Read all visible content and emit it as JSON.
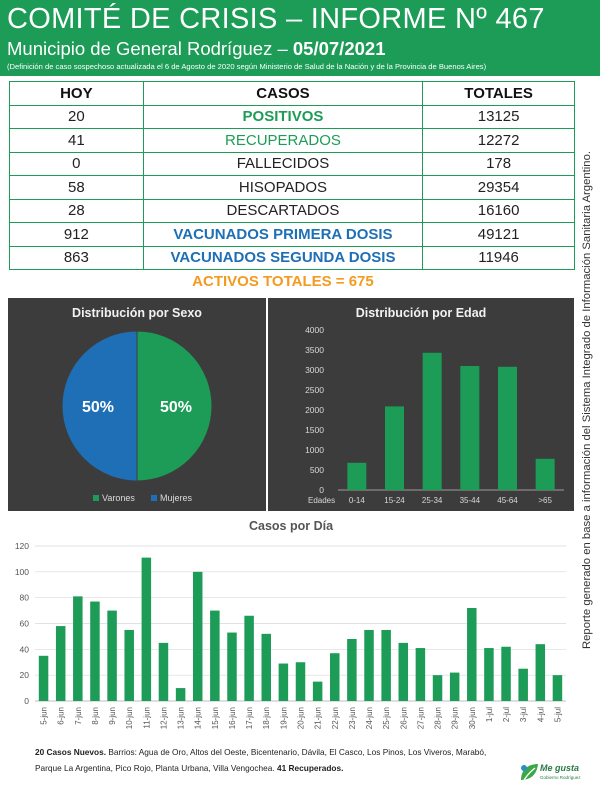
{
  "header": {
    "title": "COMITÉ DE CRISIS – INFORME Nº 467",
    "subtitle_prefix": "Municipio de General Rodríguez – ",
    "subtitle_date": "05/07/2021",
    "note": "(Definición de caso sospechoso actualizada el 6 de Agosto de 2020 según Ministerio de Salud de la Nación y de la Provincia de Buenos Aires)"
  },
  "table": {
    "headers": [
      "HOY",
      "CASOS",
      "TOTALES"
    ],
    "rows": [
      {
        "hoy": "20",
        "caso": "POSITIVOS",
        "total": "13125",
        "color": "#1d9c57"
      },
      {
        "hoy": "41",
        "caso": "RECUPERADOS",
        "total": "12272",
        "color": "#1d9c57"
      },
      {
        "hoy": "0",
        "caso": "FALLECIDOS",
        "total": "178",
        "color": "#222222"
      },
      {
        "hoy": "58",
        "caso": "HISOPADOS",
        "total": "29354",
        "color": "#222222"
      },
      {
        "hoy": "28",
        "caso": "DESCARTADOS",
        "total": "16160",
        "color": "#222222"
      },
      {
        "hoy": "912",
        "caso": "VACUNADOS PRIMERA DOSIS",
        "total": "49121",
        "color": "#1e6fb5"
      },
      {
        "hoy": "863",
        "caso": "VACUNADOS SEGUNDA DOSIS",
        "total": "11946",
        "color": "#1e6fb5"
      }
    ],
    "activos": "ACTIVOS TOTALES = 675"
  },
  "sidebar_text": "Reporte generado en base a información del Sistema Integrado de Información Sanitaria Argentino.",
  "colors": {
    "green": "#1d9c57",
    "blue": "#1e6fb5",
    "orange": "#f39a1f",
    "panel": "#3c3c3c"
  },
  "chart_data": [
    {
      "type": "pie",
      "title": "Distribución por Sexo",
      "labels": [
        "Varones",
        "Mujeres"
      ],
      "values": [
        50,
        50
      ],
      "value_labels": [
        "50%",
        "50%"
      ],
      "colors": [
        "#1d9c57",
        "#1e6fb5"
      ],
      "legend": "bottom"
    },
    {
      "type": "bar",
      "title": "Distribución por Edad",
      "x_axis_label": "Edades",
      "categories": [
        "0-14",
        "15-24",
        "25-34",
        "35-44",
        "45-64",
        ">65"
      ],
      "values": [
        680,
        2090,
        3430,
        3100,
        3080,
        780
      ],
      "ylim": [
        0,
        4000
      ],
      "yticks": [
        0,
        500,
        1000,
        1500,
        2000,
        2500,
        3000,
        3500,
        4000
      ],
      "color": "#1d9c57",
      "grid": false
    },
    {
      "type": "bar",
      "title": "Casos por Día",
      "categories": [
        "5-jun",
        "6-jun",
        "7-jun",
        "8-jun",
        "9-jun",
        "10-jun",
        "11-jun",
        "12-jun",
        "13-jun",
        "14-jun",
        "15-jun",
        "16-jun",
        "17-jun",
        "18-jun",
        "19-jun",
        "20-jun",
        "21-jun",
        "22-jun",
        "23-jun",
        "24-jun",
        "25-jun",
        "26-jun",
        "27-jun",
        "28-jun",
        "29-jun",
        "30-jun",
        "1-jul",
        "2-jul",
        "3-jul",
        "4-jul",
        "5-jul"
      ],
      "values": [
        35,
        58,
        81,
        77,
        70,
        55,
        111,
        45,
        10,
        100,
        70,
        53,
        66,
        52,
        29,
        30,
        15,
        37,
        48,
        55,
        55,
        45,
        41,
        20,
        22,
        72,
        41,
        42,
        25,
        44,
        20
      ],
      "ylim": [
        0,
        120
      ],
      "yticks": [
        0,
        20,
        40,
        60,
        80,
        100,
        120
      ],
      "color": "#1d9c57",
      "grid": true
    }
  ],
  "footer": {
    "nuevos_bold": "20 Casos Nuevos.",
    "barrios": " Barrios: Agua de Oro, Altos del Oeste, Bicentenario, Dávila, El Casco, Los Pinos, Los Viveros, Marabó, Parque La Argentina, Pico Rojo, Planta Urbana, Villa Vengochea. ",
    "recuperados_bold": "41 Recuperados."
  },
  "logo": {
    "text": "Me gusta",
    "sub": "Gobierno Rodríguez"
  }
}
